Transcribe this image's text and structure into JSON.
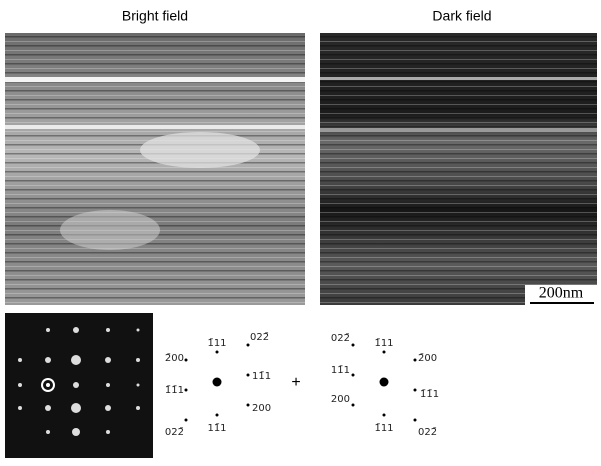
{
  "figure": {
    "panels": [
      {
        "title": "Bright field"
      },
      {
        "title": "Dark field"
      }
    ],
    "scale_bar": "200nm",
    "pattern_a": [
      "1̄11",
      "022̄",
      "2̄00",
      "11̄1",
      "1̄1̄1",
      "200",
      "022̄",
      "11̄1"
    ],
    "plus": "+",
    "pattern_b": [
      "022̄",
      "1̄11",
      "2̄00",
      "11̄1",
      "1̄1̄1",
      "200",
      "1̄11",
      "022̄"
    ]
  }
}
